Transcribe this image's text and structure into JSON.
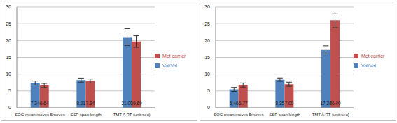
{
  "chart_data": [
    {
      "type": "bar",
      "categories": [
        "SOC mean moves 5moves",
        "SSP span length",
        "TMT A RT (unit:sec)"
      ],
      "series": [
        {
          "name": "Val/Val",
          "color": "#4f81bd",
          "values": [
            7.34,
            8.21,
            21.0
          ],
          "value_labels": [
            "7.34",
            "8.21",
            "21.00"
          ],
          "errors": [
            0.6,
            0.6,
            2.5
          ]
        },
        {
          "name": "Met carrier",
          "color": "#c0504d",
          "values": [
            6.64,
            7.94,
            19.69
          ],
          "value_labels": [
            "6.64",
            "7.94",
            "19.69"
          ],
          "errors": [
            0.6,
            0.6,
            1.7
          ]
        }
      ],
      "ylim": [
        0,
        30
      ],
      "yticks": [
        0,
        5,
        10,
        15,
        20,
        25,
        30
      ],
      "grid": true,
      "data_labels": true,
      "legend": "right"
    },
    {
      "type": "bar",
      "categories": [
        "SOC mean moves 5moves",
        "SSP span length",
        "TMT A RT (unit:sec)"
      ],
      "series": [
        {
          "name": "Val/Val",
          "color": "#4f81bd",
          "values": [
            5.46,
            8.35,
            17.24
          ],
          "value_labels": [
            "5.46",
            "8.35",
            "17.24"
          ],
          "errors": [
            0.6,
            0.5,
            1.2
          ]
        },
        {
          "name": "Met carrier",
          "color": "#c0504d",
          "values": [
            6.77,
            7.0,
            26.0
          ],
          "value_labels": [
            "6.77",
            "7.00",
            "26.00"
          ],
          "errors": [
            0.6,
            0.6,
            2.2
          ]
        }
      ],
      "ylim": [
        0,
        30
      ],
      "yticks": [
        0,
        5,
        10,
        15,
        20,
        25,
        30
      ],
      "grid": true,
      "data_labels": true,
      "legend": "right"
    }
  ]
}
